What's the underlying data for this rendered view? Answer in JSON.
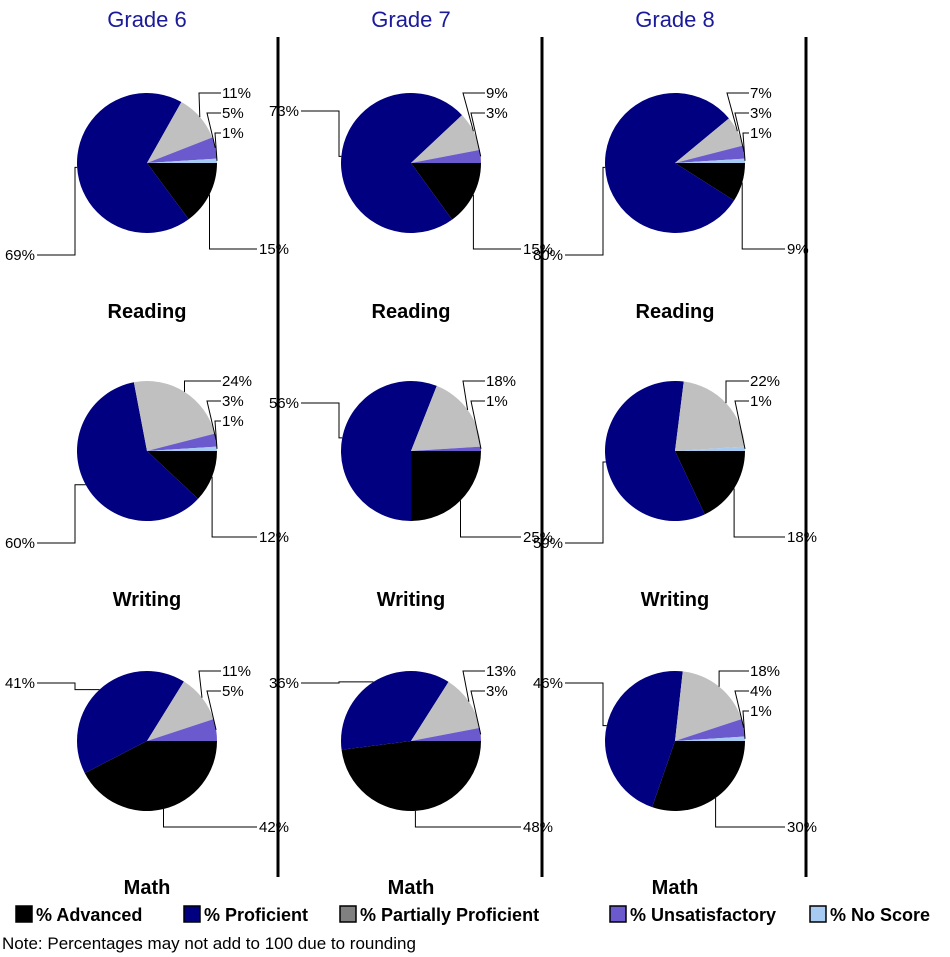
{
  "colors": {
    "advanced": "#000000",
    "proficient": "#000080",
    "partially_proficient": "#c0c0c0",
    "unsatisfactory": "#6a5acd",
    "no_score": "#a6caf0",
    "grade_header": "#1a1a9a"
  },
  "grades": [
    "Grade 6",
    "Grade 7",
    "Grade 8"
  ],
  "legend": [
    {
      "key": "advanced",
      "label": "% Advanced"
    },
    {
      "key": "proficient",
      "label": "% Proficient"
    },
    {
      "key": "partially_proficient",
      "label": "% Partially Proficient"
    },
    {
      "key": "unsatisfactory",
      "label": "% Unsatisfactory"
    },
    {
      "key": "no_score",
      "label": "% No Score"
    }
  ],
  "note": "Note: Percentages may not add to 100 due to rounding",
  "chart_data": [
    {
      "type": "pie",
      "grade": "Grade 6",
      "title": "Reading",
      "series": [
        "% Advanced",
        "% Proficient",
        "% Partially Proficient",
        "% Unsatisfactory",
        "% No Score"
      ],
      "values": [
        15,
        69,
        11,
        5,
        1
      ],
      "labels": [
        "15%",
        "69%",
        "11%",
        "5%",
        "1%"
      ]
    },
    {
      "type": "pie",
      "grade": "Grade 7",
      "title": "Reading",
      "series": [
        "% Advanced",
        "% Proficient",
        "% Partially Proficient",
        "% Unsatisfactory",
        "% No Score"
      ],
      "values": [
        15,
        73,
        9,
        3,
        0
      ],
      "labels": [
        "15%",
        "73%",
        "9%",
        "3%",
        ""
      ]
    },
    {
      "type": "pie",
      "grade": "Grade 8",
      "title": "Reading",
      "series": [
        "% Advanced",
        "% Proficient",
        "% Partially Proficient",
        "% Unsatisfactory",
        "% No Score"
      ],
      "values": [
        9,
        80,
        7,
        3,
        1
      ],
      "labels": [
        "9%",
        "80%",
        "7%",
        "3%",
        "1%"
      ]
    },
    {
      "type": "pie",
      "grade": "Grade 6",
      "title": "Writing",
      "series": [
        "% Advanced",
        "% Proficient",
        "% Partially Proficient",
        "% Unsatisfactory",
        "% No Score"
      ],
      "values": [
        12,
        60,
        24,
        3,
        1
      ],
      "labels": [
        "12%",
        "60%",
        "24%",
        "3%",
        "1%"
      ]
    },
    {
      "type": "pie",
      "grade": "Grade 7",
      "title": "Writing",
      "series": [
        "% Advanced",
        "% Proficient",
        "% Partially Proficient",
        "% Unsatisfactory",
        "% No Score"
      ],
      "values": [
        25,
        56,
        18,
        1,
        0
      ],
      "labels": [
        "25%",
        "56%",
        "18%",
        "1%",
        ""
      ]
    },
    {
      "type": "pie",
      "grade": "Grade 8",
      "title": "Writing",
      "series": [
        "% Advanced",
        "% Proficient",
        "% Partially Proficient",
        "% Unsatisfactory",
        "% No Score"
      ],
      "values": [
        18,
        59,
        22,
        0,
        1
      ],
      "labels": [
        "18%",
        "59%",
        "22%",
        "",
        "1%"
      ]
    },
    {
      "type": "pie",
      "grade": "Grade 6",
      "title": "Math",
      "series": [
        "% Advanced",
        "% Proficient",
        "% Partially Proficient",
        "% Unsatisfactory",
        "% No Score"
      ],
      "values": [
        42,
        41,
        11,
        5,
        0
      ],
      "labels": [
        "42%",
        "41%",
        "11%",
        "5%",
        ""
      ]
    },
    {
      "type": "pie",
      "grade": "Grade 7",
      "title": "Math",
      "series": [
        "% Advanced",
        "% Proficient",
        "% Partially Proficient",
        "% Unsatisfactory",
        "% No Score"
      ],
      "values": [
        48,
        36,
        13,
        3,
        0
      ],
      "labels": [
        "48%",
        "36%",
        "13%",
        "3%",
        ""
      ]
    },
    {
      "type": "pie",
      "grade": "Grade 8",
      "title": "Math",
      "series": [
        "% Advanced",
        "% Proficient",
        "% Partially Proficient",
        "% Unsatisfactory",
        "% No Score"
      ],
      "values": [
        30,
        46,
        18,
        4,
        1
      ],
      "labels": [
        "30%",
        "46%",
        "18%",
        "4%",
        "1%"
      ]
    }
  ]
}
